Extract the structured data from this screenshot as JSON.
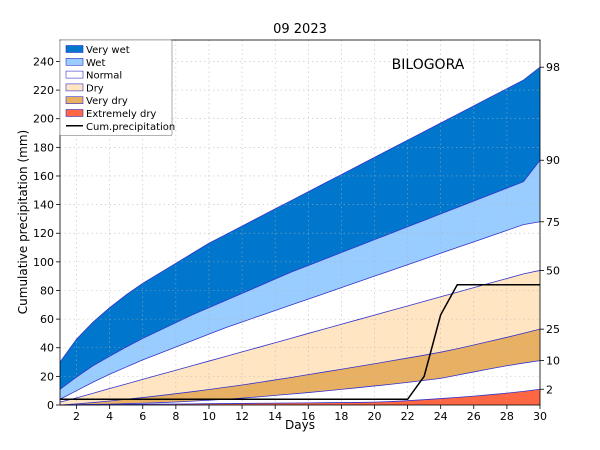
{
  "chart_data": {
    "type": "area",
    "title": "09 2023",
    "station": "BILOGORA",
    "xlabel": "Days",
    "ylabel": "Cumulative precipitation (mm)",
    "xlim": [
      1,
      30
    ],
    "ylim": [
      0,
      255
    ],
    "x_ticks": [
      2,
      4,
      6,
      8,
      10,
      12,
      14,
      16,
      18,
      20,
      22,
      24,
      26,
      28,
      30
    ],
    "y_ticks": [
      0,
      20,
      40,
      60,
      80,
      100,
      120,
      140,
      160,
      180,
      200,
      220,
      240
    ],
    "grid": true,
    "legend_placement": "top-left",
    "days": [
      1,
      2,
      3,
      4,
      5,
      6,
      7,
      8,
      9,
      10,
      11,
      12,
      13,
      14,
      15,
      16,
      17,
      18,
      19,
      20,
      21,
      22,
      23,
      24,
      25,
      26,
      27,
      28,
      29,
      30
    ],
    "percentiles": [
      {
        "label": "2",
        "values": [
          0.0,
          0.1,
          0.2,
          0.3,
          0.4,
          0.5,
          0.6,
          0.7,
          0.8,
          0.9,
          1.0,
          1.1,
          1.2,
          1.3,
          1.4,
          1.5,
          1.6,
          1.7,
          1.8,
          2.0,
          2.4,
          3.0,
          3.7,
          4.5,
          5.3,
          6.2,
          7.2,
          8.3,
          9.5,
          11.0
        ]
      },
      {
        "label": "10",
        "values": [
          0.0,
          0.2,
          0.4,
          0.6,
          0.9,
          1.2,
          1.6,
          2.1,
          2.7,
          3.3,
          4.0,
          4.8,
          5.7,
          6.7,
          7.7,
          8.7,
          9.8,
          10.9,
          12.1,
          13.3,
          14.5,
          15.8,
          17.2,
          18.6,
          20.9,
          23.1,
          25.3,
          27.4,
          29.3,
          31.0
        ]
      },
      {
        "label": "25",
        "values": [
          0.0,
          0.8,
          1.7,
          2.8,
          4.0,
          5.2,
          6.5,
          7.9,
          9.3,
          10.8,
          12.4,
          14.0,
          15.7,
          17.5,
          19.3,
          21.2,
          23.1,
          25.0,
          26.9,
          28.8,
          30.8,
          32.8,
          34.8,
          36.9,
          39.3,
          41.9,
          44.6,
          47.3,
          50.1,
          53.0
        ]
      },
      {
        "label": "50",
        "values": [
          2.0,
          5.0,
          8.2,
          11.5,
          14.7,
          17.9,
          21.1,
          24.3,
          27.5,
          30.7,
          33.9,
          37.1,
          40.3,
          43.5,
          46.7,
          50.0,
          53.2,
          56.4,
          59.6,
          62.8,
          66.0,
          69.2,
          72.4,
          75.6,
          78.8,
          82.0,
          85.2,
          88.4,
          91.6,
          94.0
        ]
      },
      {
        "label": "75",
        "values": [
          4.0,
          10.0,
          16.0,
          21.5,
          26.5,
          31.5,
          36.0,
          40.5,
          45.0,
          49.5,
          54.0,
          58.0,
          62.0,
          66.0,
          70.0,
          74.0,
          78.0,
          82.0,
          86.0,
          90.0,
          94.0,
          98.0,
          102.0,
          106.0,
          110.0,
          114.0,
          118.0,
          122.0,
          126.0,
          128.0
        ]
      },
      {
        "label": "90",
        "values": [
          11.0,
          19.5,
          27.5,
          34.0,
          40.5,
          46.5,
          52.0,
          57.5,
          63.0,
          68.0,
          73.0,
          78.0,
          83.0,
          88.0,
          93.0,
          97.5,
          102.0,
          106.5,
          111.0,
          115.5,
          120.0,
          124.5,
          129.0,
          133.5,
          138.0,
          142.5,
          147.0,
          151.5,
          156.0,
          171.0
        ]
      },
      {
        "label": "98",
        "values": [
          30.0,
          46.0,
          58.0,
          68.0,
          77.0,
          85.0,
          92.0,
          99.0,
          106.0,
          113.0,
          119.0,
          125.0,
          131.0,
          137.0,
          143.0,
          149.0,
          155.0,
          161.0,
          167.0,
          173.0,
          179.0,
          185.0,
          191.0,
          197.0,
          203.0,
          209.0,
          215.0,
          221.0,
          227.0,
          236.0
        ]
      }
    ],
    "categories": [
      {
        "name": "Very wet",
        "color": "#0077cc"
      },
      {
        "name": "Wet",
        "color": "#99ccff"
      },
      {
        "name": "Normal",
        "color": "#ffffff"
      },
      {
        "name": "Dry",
        "color": "#ffe5c2"
      },
      {
        "name": "Very dry",
        "color": "#e8b063"
      },
      {
        "name": "Extremely dry",
        "color": "#ff6644"
      }
    ],
    "cum_precipitation": {
      "name": "Cum.precipitation",
      "color": "#000000",
      "x": [
        1,
        2,
        3,
        4,
        5,
        6,
        7,
        8,
        9,
        10,
        11,
        12,
        13,
        14,
        15,
        16,
        17,
        18,
        19,
        20,
        21,
        22,
        23,
        24,
        25,
        26,
        27,
        28,
        29,
        30
      ],
      "values": [
        4,
        4,
        4,
        4,
        4,
        4,
        4,
        4,
        4,
        4,
        4,
        4,
        4,
        4,
        4,
        4,
        4,
        4,
        4,
        4,
        4,
        4,
        20,
        63,
        84,
        84,
        84,
        84,
        84,
        84
      ]
    },
    "percentile_line_color": "#3333cc"
  }
}
